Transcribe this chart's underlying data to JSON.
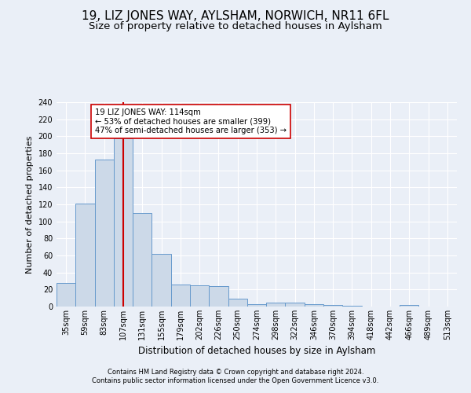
{
  "title": "19, LIZ JONES WAY, AYLSHAM, NORWICH, NR11 6FL",
  "subtitle": "Size of property relative to detached houses in Aylsham",
  "xlabel": "Distribution of detached houses by size in Aylsham",
  "ylabel": "Number of detached properties",
  "footnote1": "Contains HM Land Registry data © Crown copyright and database right 2024.",
  "footnote2": "Contains public sector information licensed under the Open Government Licence v3.0.",
  "bin_labels": [
    "35sqm",
    "59sqm",
    "83sqm",
    "107sqm",
    "131sqm",
    "155sqm",
    "179sqm",
    "202sqm",
    "226sqm",
    "250sqm",
    "274sqm",
    "298sqm",
    "322sqm",
    "346sqm",
    "370sqm",
    "394sqm",
    "418sqm",
    "442sqm",
    "466sqm",
    "489sqm",
    "513sqm"
  ],
  "bin_values": [
    28,
    121,
    173,
    198,
    110,
    62,
    26,
    25,
    24,
    9,
    3,
    5,
    5,
    3,
    2,
    1,
    0,
    0,
    2,
    0,
    0
  ],
  "bar_color": "#ccd9e8",
  "bar_edge_color": "#6699cc",
  "property_bin_index": 3,
  "vline_color": "#cc0000",
  "annotation_text": "19 LIZ JONES WAY: 114sqm\n← 53% of detached houses are smaller (399)\n47% of semi-detached houses are larger (353) →",
  "annotation_box_color": "white",
  "annotation_box_edge": "#cc0000",
  "ylim": [
    0,
    240
  ],
  "yticks": [
    0,
    20,
    40,
    60,
    80,
    100,
    120,
    140,
    160,
    180,
    200,
    220,
    240
  ],
  "bg_color": "#eaeff7",
  "plot_bg_color": "#eaeff7",
  "grid_color": "white",
  "title_fontsize": 11,
  "subtitle_fontsize": 9.5,
  "ylabel_fontsize": 8,
  "xlabel_fontsize": 8.5,
  "footnote_fontsize": 6,
  "tick_fontsize": 7
}
